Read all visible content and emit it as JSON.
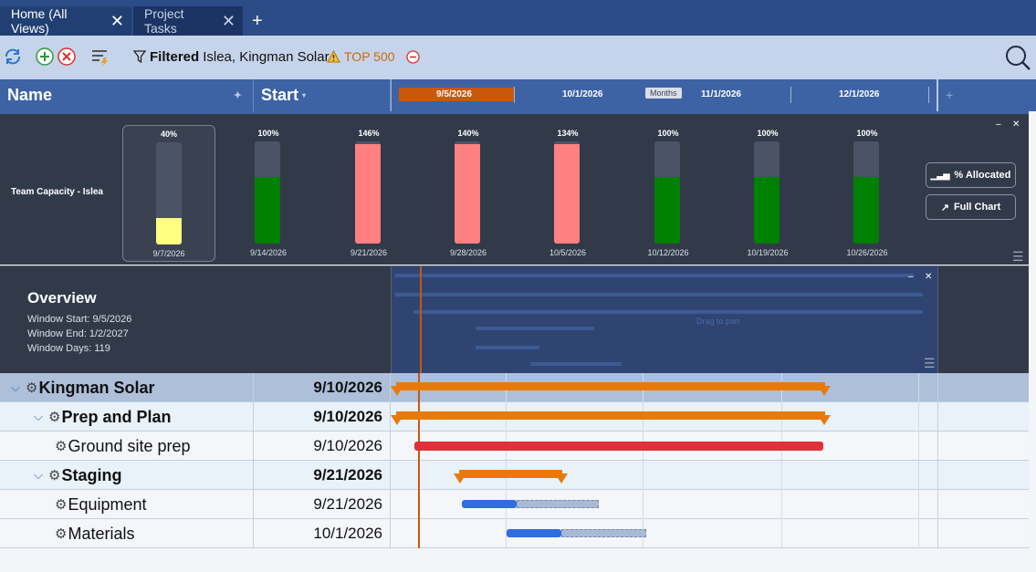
{
  "tabs": [
    {
      "label": "Home (All Views)"
    },
    {
      "label": "Project Tasks"
    }
  ],
  "tab_add_label": "+",
  "toolbar": {
    "filtered_label": "Filtered",
    "filter_value": "Islea, Kingman Solar",
    "top_label": "TOP 500"
  },
  "columns": {
    "name": "Name",
    "start": "Start"
  },
  "timescale": {
    "labels": [
      "9/5/2026",
      "10/1/2026",
      "11/1/2026",
      "12/1/2026"
    ],
    "months_button": "Months"
  },
  "capacity": {
    "title": "Team Capacity - Islea",
    "periods": [
      {
        "pct": "40%",
        "value": 40,
        "date": "9/7/2026",
        "color": "#ffff80"
      },
      {
        "pct": "100%",
        "value": 100,
        "date": "9/14/2026",
        "color": "#008000"
      },
      {
        "pct": "146%",
        "value": 146,
        "date": "9/21/2026",
        "color": "#ff8080"
      },
      {
        "pct": "140%",
        "value": 140,
        "date": "9/28/2026",
        "color": "#ff8080"
      },
      {
        "pct": "134%",
        "value": 134,
        "date": "10/5/2026",
        "color": "#ff8080"
      },
      {
        "pct": "100%",
        "value": 100,
        "date": "10/12/2026",
        "color": "#008000"
      },
      {
        "pct": "100%",
        "value": 100,
        "date": "10/19/2026",
        "color": "#008000"
      },
      {
        "pct": "100%",
        "value": 100,
        "date": "10/26/2026",
        "color": "#008000"
      }
    ],
    "allocated_button": "% Allocated",
    "full_chart_button": "Full Chart"
  },
  "overview": {
    "title": "Overview",
    "window_start": "Window Start: 9/5/2026",
    "window_end": "Window End: 1/2/2027",
    "window_days": "Window Days: 119",
    "drag_hint": "Drag to pan"
  },
  "tasks": [
    {
      "name": "Kingman Solar",
      "start": "9/10/2026",
      "level": 0,
      "summary": true
    },
    {
      "name": "Prep and Plan",
      "start": "9/10/2026",
      "level": 1,
      "summary": true
    },
    {
      "name": "Ground site prep",
      "start": "9/10/2026",
      "level": 2,
      "summary": false
    },
    {
      "name": "Staging",
      "start": "9/21/2026",
      "level": 1,
      "summary": true
    },
    {
      "name": "Equipment",
      "start": "9/21/2026",
      "level": 2,
      "summary": false
    },
    {
      "name": "Materials",
      "start": "10/1/2026",
      "level": 2,
      "summary": false
    }
  ],
  "colors": {
    "summary_bar": "#e87a0c",
    "critical_bar": "#e0303a",
    "task_bar": "#2f6de0",
    "today_line": "#c9570c"
  }
}
